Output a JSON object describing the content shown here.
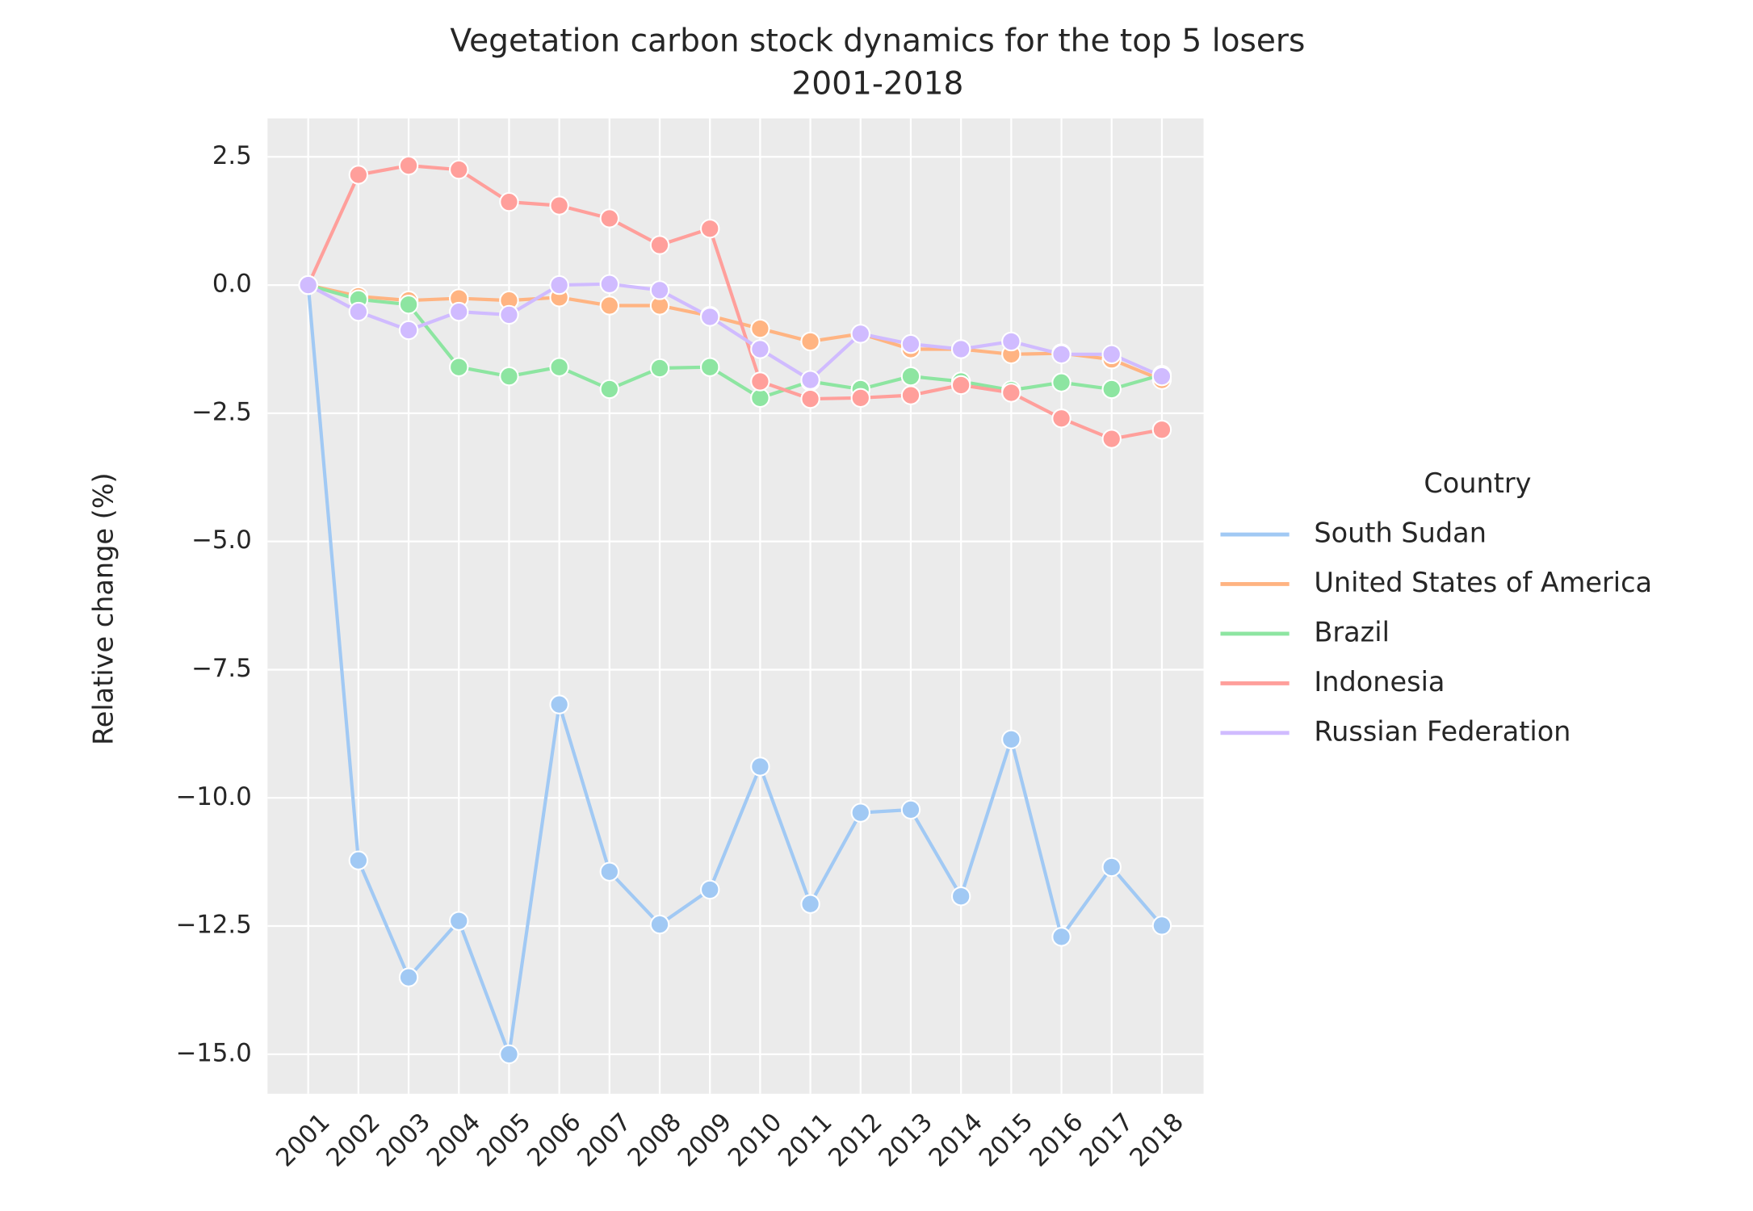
{
  "chart_data": {
    "type": "line",
    "title": "Vegetation carbon stock dynamics for the top 5 losers",
    "subtitle": "2001-2018",
    "y_label": "Relative change (%)",
    "legend_title": "Country",
    "legend": "right",
    "grid": true,
    "x": [
      2001,
      2002,
      2003,
      2004,
      2005,
      2006,
      2007,
      2008,
      2009,
      2010,
      2011,
      2012,
      2013,
      2014,
      2015,
      2016,
      2017,
      2018
    ],
    "xlim": [
      2000.19,
      2018.83
    ],
    "xticks": [
      2001,
      2002,
      2003,
      2004,
      2005,
      2006,
      2007,
      2008,
      2009,
      2010,
      2011,
      2012,
      2013,
      2014,
      2015,
      2016,
      2017,
      2018
    ],
    "ylim": [
      -15.77,
      3.25
    ],
    "yticks": [
      {
        "value": -15,
        "label": "−15.0"
      },
      {
        "value": -12.5,
        "label": "−12.5"
      },
      {
        "value": -10,
        "label": "−10.0"
      },
      {
        "value": -7.5,
        "label": "−7.5"
      },
      {
        "value": -5,
        "label": "−5.0"
      },
      {
        "value": -2.5,
        "label": "−2.5"
      },
      {
        "value": 0,
        "label": "0.0"
      },
      2.5
    ],
    "series": [
      {
        "name": "South Sudan",
        "color": "#a1c9f4",
        "values": [
          0,
          -11.22,
          -13.5,
          -12.4,
          -15.0,
          -8.18,
          -11.44,
          -12.47,
          -11.79,
          -9.39,
          -12.07,
          -10.29,
          -10.23,
          -11.92,
          -8.86,
          -12.71,
          -11.35,
          -12.49
        ]
      },
      {
        "name": "United States of America",
        "color": "#ffb482",
        "values": [
          0,
          -0.22,
          -0.3,
          -0.26,
          -0.3,
          -0.24,
          -0.4,
          -0.4,
          -0.6,
          -0.85,
          -1.1,
          -0.95,
          -1.25,
          -1.25,
          -1.35,
          -1.33,
          -1.45,
          -1.85
        ]
      },
      {
        "name": "Brazil",
        "color": "#8de5a1",
        "values": [
          0,
          -0.28,
          -0.38,
          -1.6,
          -1.78,
          -1.6,
          -2.03,
          -1.62,
          -1.6,
          -2.2,
          -1.88,
          -2.03,
          -1.78,
          -1.88,
          -2.05,
          -1.9,
          -2.03,
          -1.75
        ]
      },
      {
        "name": "Indonesia",
        "color": "#ff9f9b",
        "values": [
          0,
          2.15,
          2.33,
          2.25,
          1.62,
          1.55,
          1.3,
          0.78,
          1.1,
          -1.88,
          -2.22,
          -2.2,
          -2.15,
          -1.95,
          -2.1,
          -2.6,
          -3.0,
          -2.82
        ]
      },
      {
        "name": "Russian Federation",
        "color": "#d0bbff",
        "values": [
          0,
          -0.52,
          -0.88,
          -0.52,
          -0.58,
          0,
          0.02,
          -0.1,
          -0.62,
          -1.25,
          -1.85,
          -0.95,
          -1.15,
          -1.25,
          -1.1,
          -1.35,
          -1.35,
          -1.78
        ]
      }
    ]
  }
}
